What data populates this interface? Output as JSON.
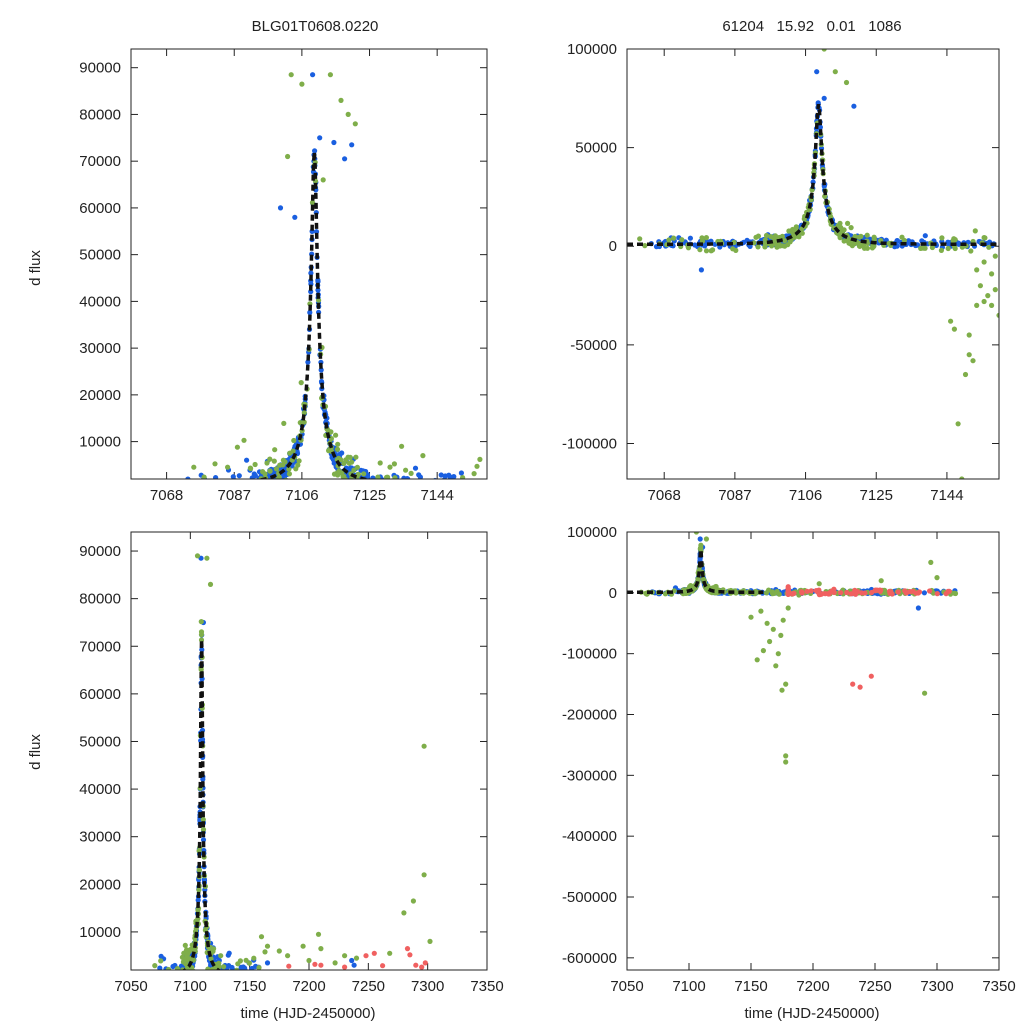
{
  "figure": {
    "title_left": "BLG01T0608.0220",
    "title_right": "61204   15.92   0.01   1086",
    "xlabel": "time (HJD-2450000)",
    "ylabel": "d flux"
  },
  "colors": {
    "green": "#7fae4a",
    "blue": "#1a5fe0",
    "red": "#f06060",
    "model": "#111111"
  },
  "model": {
    "t0": 7109.5,
    "tE": 10.0,
    "peak": 72000,
    "base": 1000
  },
  "chart_data": [
    {
      "id": "top-left",
      "type": "scatter",
      "title": "BLG01T0608.0220",
      "xlabel": "",
      "ylabel": "d flux",
      "xlim": [
        7058,
        7158
      ],
      "ylim": [
        2000,
        94000
      ],
      "xticks": [
        7068,
        7087,
        7106,
        7125,
        7144
      ],
      "yticks": [
        10000,
        20000,
        30000,
        40000,
        50000,
        60000,
        70000,
        80000,
        90000
      ],
      "ytick_labels": [
        "10000",
        "20000",
        "30000",
        "40000",
        "50000",
        "60000",
        "70000",
        "80000",
        "90000"
      ],
      "model_range": [
        7058,
        7158
      ],
      "series": [
        {
          "name": "blue",
          "color": "#1a5fe0",
          "seed": 11,
          "n": 380,
          "tmin": 7072,
          "tmax": 7151,
          "scatter": 1800,
          "extra": [
            [
              7109,
              88500
            ],
            [
              7111,
              75000
            ],
            [
              7115,
              74000
            ],
            [
              7118,
              70500
            ],
            [
              7120,
              73500
            ],
            [
              7100,
              60000
            ],
            [
              7104,
              58000
            ]
          ]
        },
        {
          "name": "green",
          "color": "#7fae4a",
          "seed": 23,
          "n": 170,
          "tmin": 7072,
          "tmax": 7156,
          "scatter": 4200,
          "extra": [
            [
              7103,
              88500
            ],
            [
              7106,
              86500
            ],
            [
              7114,
              88500
            ],
            [
              7117,
              83000
            ],
            [
              7119,
              80000
            ],
            [
              7121,
              78000
            ],
            [
              7102,
              71000
            ],
            [
              7112,
              66000
            ],
            [
              7134,
              9000
            ],
            [
              7140,
              7000
            ],
            [
              7156,
              6200
            ]
          ]
        }
      ]
    },
    {
      "id": "top-right",
      "type": "scatter",
      "title": "61204   15.92   0.01   1086",
      "xlabel": "",
      "ylabel": "",
      "xlim": [
        7058,
        7158
      ],
      "ylim": [
        -118000,
        100000
      ],
      "xticks": [
        7068,
        7087,
        7106,
        7125,
        7144
      ],
      "yticks": [
        -100000,
        -50000,
        0,
        50000,
        100000
      ],
      "ytick_labels": [
        "-100000",
        "-50000",
        "0",
        "50000",
        "100000"
      ],
      "model_range": [
        7058,
        7158
      ],
      "series": [
        {
          "name": "blue",
          "color": "#1a5fe0",
          "seed": 37,
          "n": 420,
          "tmin": 7064,
          "tmax": 7158,
          "scatter": 1600,
          "extra": [
            [
              7078,
              -12000
            ],
            [
              7109,
              88500
            ],
            [
              7111,
              75000
            ],
            [
              7119,
              71000
            ]
          ]
        },
        {
          "name": "green",
          "color": "#7fae4a",
          "seed": 41,
          "n": 190,
          "tmin": 7060,
          "tmax": 7158,
          "scatter": 3500,
          "extra": [
            [
              7111,
              100000
            ],
            [
              7114,
              88500
            ],
            [
              7117,
              83000
            ],
            [
              7148,
              -118000
            ],
            [
              7147,
              -90000
            ],
            [
              7149,
              -65000
            ],
            [
              7151,
              -58000
            ],
            [
              7150,
              -45000
            ],
            [
              7145,
              -38000
            ],
            [
              7146,
              -42000
            ],
            [
              7152,
              -30000
            ],
            [
              7154,
              -28000
            ],
            [
              7155,
              -25000
            ],
            [
              7156,
              -30000
            ],
            [
              7157,
              -22000
            ],
            [
              7153,
              -20000
            ],
            [
              7158,
              -35000
            ],
            [
              7156,
              -14000
            ],
            [
              7154,
              -8000
            ],
            [
              7152,
              -12000
            ],
            [
              7157,
              -5000
            ],
            [
              7150,
              -55000
            ]
          ]
        }
      ]
    },
    {
      "id": "bottom-left",
      "type": "scatter",
      "title": "",
      "xlabel": "time (HJD-2450000)",
      "ylabel": "d flux",
      "xlim": [
        7050,
        7350
      ],
      "ylim": [
        2000,
        94000
      ],
      "xticks": [
        7050,
        7100,
        7150,
        7200,
        7250,
        7300,
        7350
      ],
      "yticks": [
        10000,
        20000,
        30000,
        40000,
        50000,
        60000,
        70000,
        80000,
        90000
      ],
      "ytick_labels": [
        "10000",
        "20000",
        "30000",
        "40000",
        "50000",
        "60000",
        "70000",
        "80000",
        "90000"
      ],
      "model_range": [
        7050,
        7160
      ],
      "series": [
        {
          "name": "blue",
          "color": "#1a5fe0",
          "seed": 53,
          "n": 380,
          "tmin": 7072,
          "tmax": 7158,
          "scatter": 1800,
          "extra": [
            [
              7109,
              88500
            ],
            [
              7111,
              75000
            ],
            [
              7165,
              3500
            ],
            [
              7236,
              4000
            ],
            [
              7238,
              3000
            ]
          ]
        },
        {
          "name": "green",
          "color": "#7fae4a",
          "seed": 59,
          "n": 150,
          "tmin": 7070,
          "tmax": 7165,
          "scatter": 4000,
          "extra": [
            [
              7106,
              89000
            ],
            [
              7114,
              88500
            ],
            [
              7117,
              83000
            ],
            [
              7297,
              49000
            ],
            [
              7297,
              22000
            ],
            [
              7280,
              14000
            ],
            [
              7288,
              16500
            ],
            [
              7302,
              8000
            ],
            [
              7160,
              9000
            ],
            [
              7165,
              7000
            ],
            [
              7182,
              5000
            ],
            [
              7195,
              7000
            ],
            [
              7208,
              9500
            ],
            [
              7210,
              6500
            ],
            [
              7222,
              3500
            ],
            [
              7230,
              5000
            ],
            [
              7240,
              4500
            ],
            [
              7268,
              5500
            ],
            [
              7175,
              6000
            ],
            [
              7200,
              4000
            ]
          ]
        },
        {
          "name": "red",
          "color": "#f06060",
          "seed": 61,
          "n": 0,
          "tmin": 7180,
          "tmax": 7300,
          "scatter": 0,
          "extra": [
            [
              7183,
              2800
            ],
            [
              7205,
              3200
            ],
            [
              7210,
              3000
            ],
            [
              7248,
              5000
            ],
            [
              7255,
              5500
            ],
            [
              7283,
              6500
            ],
            [
              7285,
              5200
            ],
            [
              7290,
              3000
            ],
            [
              7295,
              2600
            ],
            [
              7298,
              3500
            ],
            [
              7230,
              2600
            ],
            [
              7262,
              2900
            ]
          ]
        }
      ]
    },
    {
      "id": "bottom-right",
      "type": "scatter",
      "title": "",
      "xlabel": "time (HJD-2450000)",
      "ylabel": "",
      "xlim": [
        7050,
        7350
      ],
      "ylim": [
        -620000,
        100000
      ],
      "xticks": [
        7050,
        7100,
        7150,
        7200,
        7250,
        7300,
        7350
      ],
      "yticks": [
        -600000,
        -500000,
        -400000,
        -300000,
        -200000,
        -100000,
        0,
        100000
      ],
      "ytick_labels": [
        "-600000",
        "-500000",
        "-400000",
        "-300000",
        "-200000",
        "-100000",
        "0",
        "100000"
      ],
      "model_range": [
        7050,
        7160
      ],
      "series": [
        {
          "name": "blue",
          "color": "#1a5fe0",
          "seed": 71,
          "n": 360,
          "tmin": 7070,
          "tmax": 7315,
          "scatter": 2500,
          "extra": [
            [
              7109,
              88500
            ],
            [
              7111,
              75000
            ],
            [
              7285,
              -25000
            ]
          ]
        },
        {
          "name": "green",
          "color": "#7fae4a",
          "seed": 73,
          "n": 260,
          "tmin": 7060,
          "tmax": 7315,
          "scatter": 3500,
          "extra": [
            [
              7106,
              100000
            ],
            [
              7114,
              88500
            ],
            [
              7178,
              -278000
            ],
            [
              7178,
              -268000
            ],
            [
              7175,
              -160000
            ],
            [
              7178,
              -150000
            ],
            [
              7155,
              -110000
            ],
            [
              7160,
              -95000
            ],
            [
              7165,
              -80000
            ],
            [
              7170,
              -120000
            ],
            [
              7172,
              -100000
            ],
            [
              7168,
              -60000
            ],
            [
              7163,
              -50000
            ],
            [
              7150,
              -40000
            ],
            [
              7158,
              -30000
            ],
            [
              7174,
              -70000
            ],
            [
              7176,
              -45000
            ],
            [
              7180,
              -25000
            ],
            [
              7290,
              -165000
            ],
            [
              7295,
              50000
            ],
            [
              7300,
              25000
            ],
            [
              7255,
              20000
            ],
            [
              7205,
              15000
            ]
          ]
        },
        {
          "name": "red",
          "color": "#f06060",
          "seed": 79,
          "n": 140,
          "tmin": 7180,
          "tmax": 7315,
          "scatter": 3500,
          "extra": [
            [
              7232,
              -150000
            ],
            [
              7238,
              -155000
            ],
            [
              7247,
              -137000
            ]
          ]
        }
      ]
    }
  ]
}
